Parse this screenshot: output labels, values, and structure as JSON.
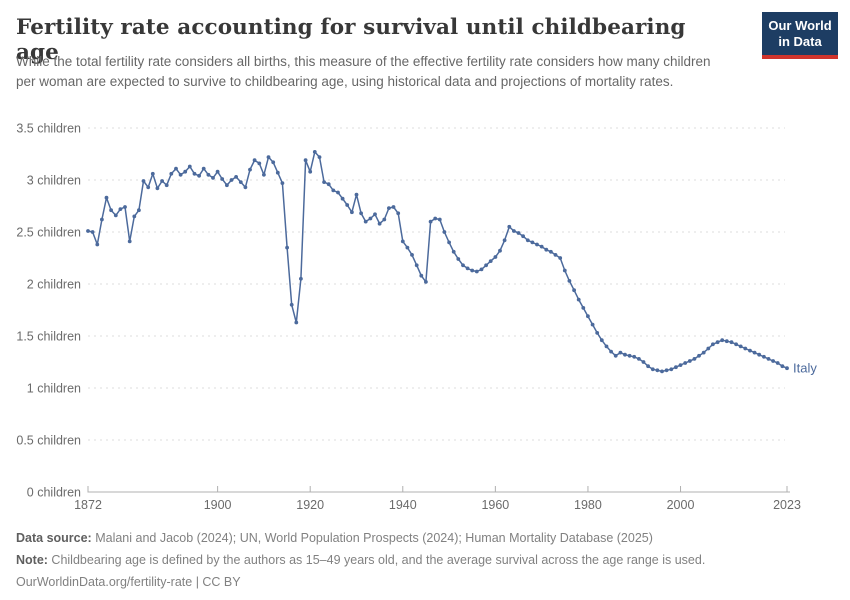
{
  "header": {
    "title": "Fertility rate accounting for survival until childbearing age",
    "subtitle": "While the total fertility rate considers all births, this measure of the effective fertility rate considers how many children per woman are expected to survive to childbearing age, using historical data and projections of mortality rates.",
    "logo": {
      "line1": "Our World",
      "line2": "in Data"
    }
  },
  "chart_data": {
    "type": "line",
    "title": "Fertility rate accounting for survival until childbearing age",
    "xlabel": "",
    "ylabel": "children",
    "xlim": [
      1872,
      2023
    ],
    "ylim": [
      0,
      3.5
    ],
    "grid": "horizontal-dashed",
    "legend_position": "end-of-line-label",
    "x_ticks": [
      1872,
      1900,
      1920,
      1940,
      1960,
      1980,
      2000,
      2023
    ],
    "y_ticks": [
      {
        "v": 0,
        "label": "0 children"
      },
      {
        "v": 0.5,
        "label": "0.5 children"
      },
      {
        "v": 1,
        "label": "1 children"
      },
      {
        "v": 1.5,
        "label": "1.5 children"
      },
      {
        "v": 2,
        "label": "2 children"
      },
      {
        "v": 2.5,
        "label": "2.5 children"
      },
      {
        "v": 3,
        "label": "3 children"
      },
      {
        "v": 3.5,
        "label": "3.5 children"
      }
    ],
    "series": [
      {
        "name": "Italy",
        "color": "#4c6a9c",
        "x": [
          1872,
          1873,
          1874,
          1875,
          1876,
          1877,
          1878,
          1879,
          1880,
          1881,
          1882,
          1883,
          1884,
          1885,
          1886,
          1887,
          1888,
          1889,
          1890,
          1891,
          1892,
          1893,
          1894,
          1895,
          1896,
          1897,
          1898,
          1899,
          1900,
          1901,
          1902,
          1903,
          1904,
          1905,
          1906,
          1907,
          1908,
          1909,
          1910,
          1911,
          1912,
          1913,
          1914,
          1915,
          1916,
          1917,
          1918,
          1919,
          1920,
          1921,
          1922,
          1923,
          1924,
          1925,
          1926,
          1927,
          1928,
          1929,
          1930,
          1931,
          1932,
          1933,
          1934,
          1935,
          1936,
          1937,
          1938,
          1939,
          1940,
          1941,
          1942,
          1943,
          1944,
          1945,
          1946,
          1947,
          1948,
          1949,
          1950,
          1951,
          1952,
          1953,
          1954,
          1955,
          1956,
          1957,
          1958,
          1959,
          1960,
          1961,
          1962,
          1963,
          1964,
          1965,
          1966,
          1967,
          1968,
          1969,
          1970,
          1971,
          1972,
          1973,
          1974,
          1975,
          1976,
          1977,
          1978,
          1979,
          1980,
          1981,
          1982,
          1983,
          1984,
          1985,
          1986,
          1987,
          1988,
          1989,
          1990,
          1991,
          1992,
          1993,
          1994,
          1995,
          1996,
          1997,
          1998,
          1999,
          2000,
          2001,
          2002,
          2003,
          2004,
          2005,
          2006,
          2007,
          2008,
          2009,
          2010,
          2011,
          2012,
          2013,
          2014,
          2015,
          2016,
          2017,
          2018,
          2019,
          2020,
          2021,
          2022,
          2023
        ],
        "values": [
          2.51,
          2.5,
          2.38,
          2.62,
          2.83,
          2.71,
          2.66,
          2.72,
          2.74,
          2.41,
          2.65,
          2.71,
          2.99,
          2.93,
          3.06,
          2.92,
          2.99,
          2.95,
          3.06,
          3.11,
          3.05,
          3.08,
          3.13,
          3.06,
          3.04,
          3.11,
          3.05,
          3.02,
          3.08,
          3.01,
          2.95,
          3.0,
          3.03,
          2.98,
          2.93,
          3.1,
          3.19,
          3.16,
          3.05,
          3.22,
          3.17,
          3.07,
          2.97,
          2.35,
          1.8,
          1.63,
          2.05,
          3.19,
          3.08,
          3.27,
          3.22,
          2.98,
          2.96,
          2.9,
          2.88,
          2.82,
          2.76,
          2.69,
          2.86,
          2.68,
          2.6,
          2.63,
          2.67,
          2.58,
          2.62,
          2.73,
          2.74,
          2.68,
          2.41,
          2.35,
          2.28,
          2.18,
          2.08,
          2.02,
          2.6,
          2.63,
          2.62,
          2.5,
          2.4,
          2.31,
          2.24,
          2.18,
          2.15,
          2.13,
          2.12,
          2.14,
          2.18,
          2.22,
          2.26,
          2.32,
          2.42,
          2.55,
          2.51,
          2.49,
          2.46,
          2.42,
          2.4,
          2.38,
          2.36,
          2.33,
          2.31,
          2.28,
          2.25,
          2.13,
          2.03,
          1.94,
          1.85,
          1.77,
          1.69,
          1.61,
          1.53,
          1.46,
          1.4,
          1.35,
          1.31,
          1.34,
          1.32,
          1.31,
          1.3,
          1.28,
          1.25,
          1.21,
          1.18,
          1.17,
          1.16,
          1.17,
          1.18,
          1.2,
          1.22,
          1.24,
          1.26,
          1.28,
          1.31,
          1.34,
          1.38,
          1.42,
          1.44,
          1.46,
          1.45,
          1.44,
          1.42,
          1.4,
          1.38,
          1.36,
          1.34,
          1.32,
          1.3,
          1.28,
          1.26,
          1.24,
          1.21,
          1.19
        ]
      }
    ]
  },
  "footer": {
    "source_label": "Data source:",
    "source_text": " Malani and Jacob (2024); UN, World Population Prospects (2024); Human Mortality Database (2025)",
    "note_label": "Note:",
    "note_text": " Childbearing age is defined by the authors as 15–49 years old, and the average survival across the age range is used.",
    "url_text": "OurWorldinData.org/fertility-rate | CC BY"
  },
  "colors": {
    "series_line": "#4c6a9c",
    "logo_background": "#1d3d63",
    "logo_accent": "#d0342c",
    "title_text": "#383838",
    "axis_text": "#6b6b6b",
    "gridline": "#dcdcdc"
  }
}
